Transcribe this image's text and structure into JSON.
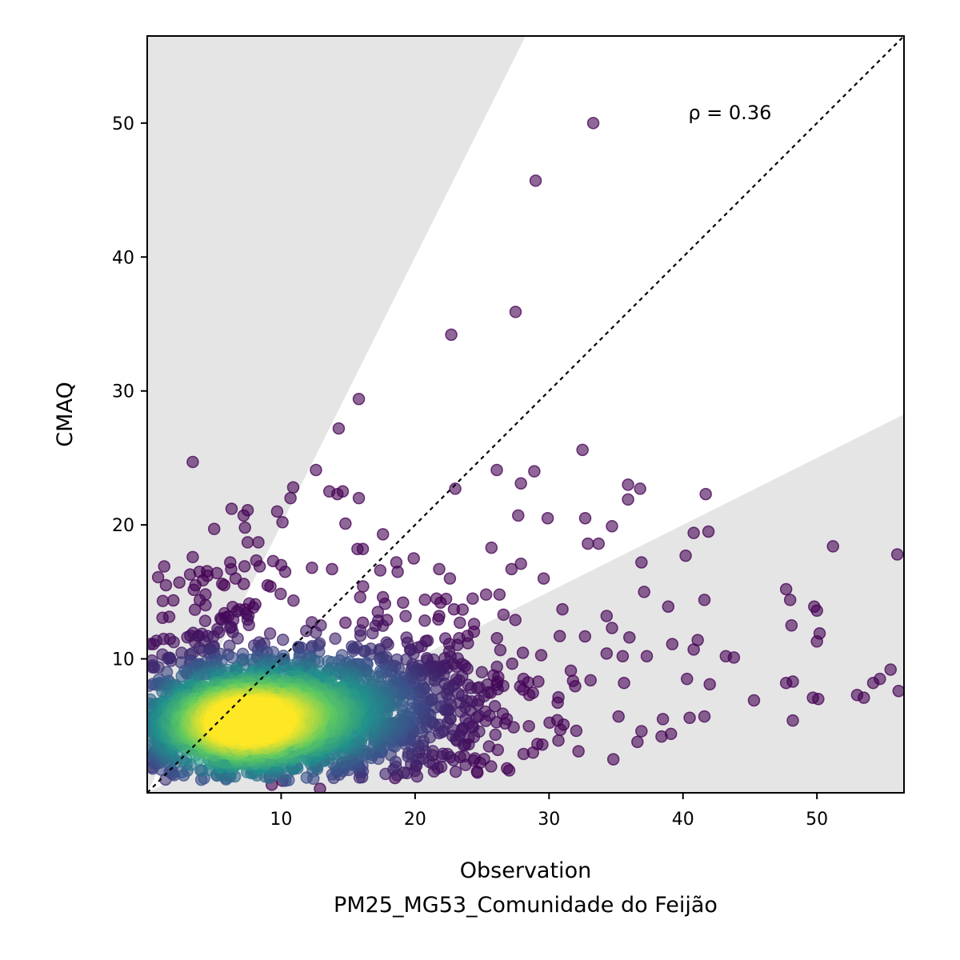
{
  "chart_data": {
    "type": "scatter",
    "xlabel": "Observation",
    "xlabel_line2": "PM25_MG53_Comunidade do Feijão",
    "ylabel": "CMAQ",
    "xlim": [
      0,
      56.5
    ],
    "ylim": [
      0,
      56.5
    ],
    "x_ticks": [
      10,
      20,
      30,
      40,
      50
    ],
    "y_ticks": [
      10,
      20,
      30,
      40,
      50
    ],
    "annotation": "ρ = 0.36",
    "reference_line": "1:1",
    "shaded_regions": "outside factor-of-2 envelope",
    "grid": false,
    "colormap": "viridis (point density)",
    "colors": {
      "shade": "#e5e5e5",
      "low_density": "#440154",
      "mid_low": "#3b528b",
      "mid": "#21918c",
      "mid_high": "#5ec962",
      "high_density": "#fde725"
    },
    "points_outliers": [
      [
        33.3,
        50.0
      ],
      [
        29.0,
        45.7
      ],
      [
        27.5,
        35.9
      ],
      [
        22.7,
        34.2
      ],
      [
        15.8,
        29.4
      ],
      [
        14.3,
        27.2
      ],
      [
        3.4,
        24.7
      ],
      [
        12.6,
        24.1
      ],
      [
        14.6,
        22.5
      ],
      [
        13.6,
        22.5
      ],
      [
        14.2,
        22.3
      ],
      [
        10.9,
        22.8
      ],
      [
        15.8,
        22.0
      ],
      [
        10.7,
        22.0
      ],
      [
        23.0,
        22.7
      ],
      [
        26.1,
        24.1
      ],
      [
        28.9,
        24.0
      ],
      [
        32.5,
        25.6
      ],
      [
        27.9,
        23.1
      ],
      [
        35.9,
        23.0
      ],
      [
        36.8,
        22.7
      ],
      [
        41.7,
        22.3
      ],
      [
        35.9,
        21.9
      ],
      [
        6.3,
        21.2
      ],
      [
        7.5,
        21.1
      ],
      [
        9.7,
        21.0
      ],
      [
        7.2,
        20.7
      ],
      [
        10.1,
        20.2
      ],
      [
        14.8,
        20.1
      ],
      [
        27.7,
        20.7
      ],
      [
        29.9,
        20.5
      ],
      [
        32.7,
        20.5
      ],
      [
        34.7,
        19.9
      ],
      [
        5.0,
        19.7
      ],
      [
        7.3,
        19.8
      ],
      [
        17.6,
        19.3
      ],
      [
        25.7,
        18.3
      ],
      [
        32.9,
        18.6
      ],
      [
        33.7,
        18.6
      ],
      [
        40.8,
        19.4
      ],
      [
        41.9,
        19.5
      ],
      [
        51.2,
        18.4
      ],
      [
        56.0,
        17.8
      ],
      [
        3.4,
        17.6
      ],
      [
        15.7,
        18.2
      ],
      [
        16.1,
        18.2
      ],
      [
        7.5,
        18.7
      ],
      [
        8.3,
        18.7
      ],
      [
        19.9,
        17.5
      ],
      [
        18.6,
        17.2
      ],
      [
        27.9,
        17.1
      ],
      [
        36.9,
        17.2
      ],
      [
        40.2,
        17.7
      ],
      [
        6.2,
        17.2
      ],
      [
        9.4,
        17.3
      ],
      [
        10.0,
        17.0
      ],
      [
        8.4,
        16.9
      ],
      [
        12.3,
        16.8
      ],
      [
        13.8,
        16.7
      ],
      [
        17.4,
        16.6
      ],
      [
        18.7,
        16.5
      ],
      [
        21.8,
        16.7
      ],
      [
        27.2,
        16.7
      ],
      [
        3.2,
        16.3
      ],
      [
        4.5,
        16.2
      ],
      [
        5.2,
        16.4
      ],
      [
        6.6,
        16.0
      ],
      [
        10.3,
        16.5
      ],
      [
        22.6,
        16.0
      ],
      [
        29.6,
        16.0
      ],
      [
        2.4,
        15.7
      ],
      [
        3.6,
        15.5
      ],
      [
        9.2,
        15.4
      ],
      [
        1.4,
        15.5
      ],
      [
        3.9,
        16.5
      ],
      [
        5.6,
        15.6
      ],
      [
        26.3,
        14.8
      ],
      [
        25.3,
        14.8
      ],
      [
        15.9,
        14.6
      ],
      [
        17.6,
        14.6
      ],
      [
        21.6,
        14.5
      ],
      [
        24.3,
        14.5
      ],
      [
        37.1,
        15.0
      ],
      [
        41.6,
        14.4
      ],
      [
        47.7,
        15.2
      ],
      [
        48.0,
        14.4
      ],
      [
        50.0,
        13.6
      ],
      [
        49.8,
        13.9
      ],
      [
        31.0,
        13.7
      ],
      [
        34.3,
        13.2
      ],
      [
        26.6,
        13.3
      ],
      [
        22.9,
        13.7
      ],
      [
        21.8,
        13.2
      ],
      [
        19.1,
        14.2
      ],
      [
        21.9,
        14.2
      ],
      [
        38.9,
        13.9
      ],
      [
        14.8,
        12.7
      ],
      [
        16.1,
        12.7
      ],
      [
        17.9,
        12.9
      ],
      [
        24.4,
        12.6
      ],
      [
        48.1,
        12.5
      ],
      [
        50.2,
        11.9
      ],
      [
        50.0,
        11.3
      ],
      [
        41.1,
        11.4
      ],
      [
        40.8,
        10.7
      ],
      [
        39.2,
        11.1
      ],
      [
        43.2,
        10.2
      ],
      [
        43.8,
        10.1
      ],
      [
        34.3,
        10.4
      ],
      [
        37.3,
        10.2
      ],
      [
        35.5,
        10.2
      ],
      [
        36.0,
        11.6
      ],
      [
        30.8,
        11.7
      ],
      [
        34.7,
        12.3
      ],
      [
        29.2,
        8.3
      ],
      [
        33.1,
        8.4
      ],
      [
        35.6,
        8.2
      ],
      [
        40.3,
        8.5
      ],
      [
        42.0,
        8.1
      ],
      [
        47.7,
        8.2
      ],
      [
        48.2,
        8.3
      ],
      [
        53.0,
        7.3
      ],
      [
        53.5,
        7.1
      ],
      [
        54.2,
        8.2
      ],
      [
        54.7,
        8.5
      ],
      [
        55.5,
        9.2
      ],
      [
        56.1,
        7.6
      ],
      [
        45.3,
        6.9
      ],
      [
        49.7,
        7.1
      ],
      [
        50.1,
        7.0
      ],
      [
        48.2,
        5.4
      ],
      [
        41.6,
        5.7
      ],
      [
        40.5,
        5.6
      ],
      [
        38.5,
        5.5
      ],
      [
        36.9,
        4.6
      ],
      [
        36.6,
        3.8
      ],
      [
        39.1,
        4.4
      ],
      [
        38.4,
        4.2
      ],
      [
        34.8,
        2.5
      ],
      [
        32.2,
        3.1
      ],
      [
        30.7,
        3.9
      ],
      [
        29.5,
        3.6
      ],
      [
        28.8,
        3.0
      ],
      [
        28.1,
        2.9
      ],
      [
        20.3,
        3.0
      ],
      [
        21.3,
        2.8
      ],
      [
        18.5,
        1.1
      ],
      [
        12.9,
        0.3
      ],
      [
        9.3,
        0.6
      ],
      [
        10.1,
        0.9
      ]
    ]
  }
}
